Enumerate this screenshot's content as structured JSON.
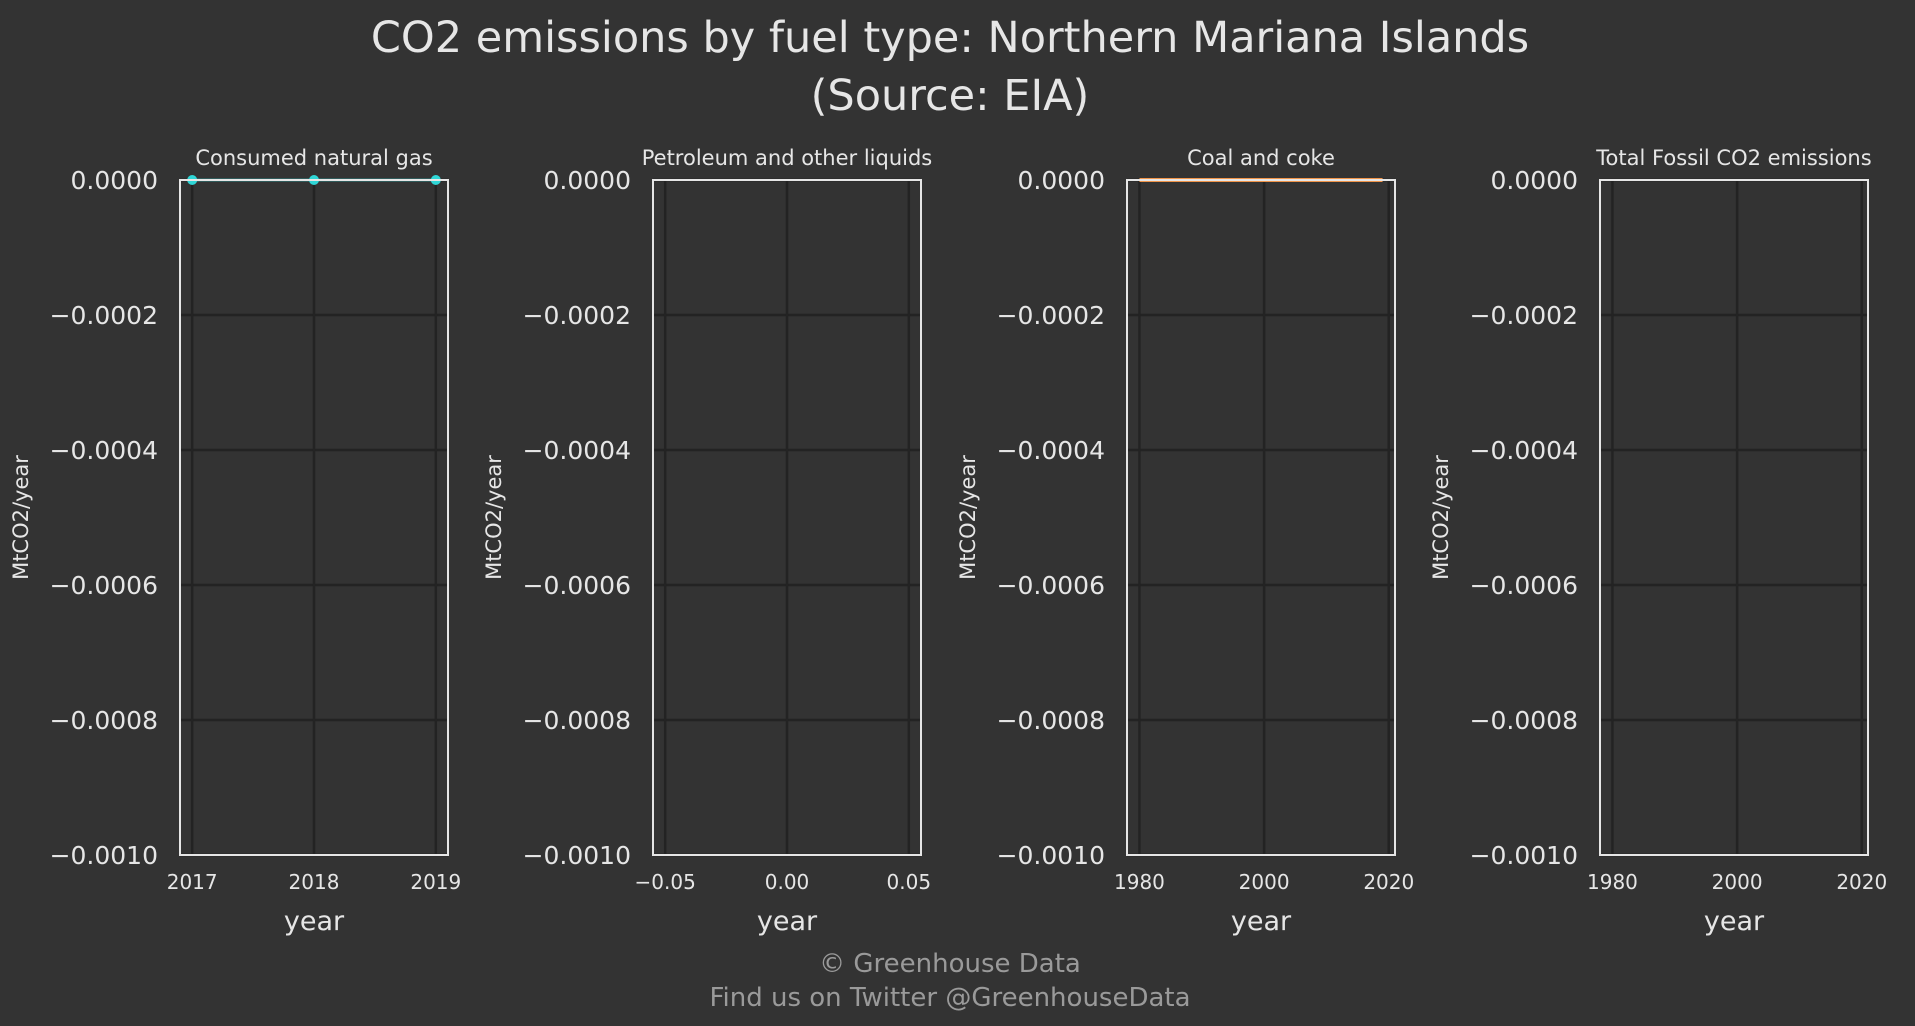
{
  "figure": {
    "title_line1": "CO2 emissions by fuel type: Northern Mariana Islands",
    "title_line2": "(Source: EIA)",
    "footer_line1": "© Greenhouse Data",
    "footer_line2": "Find us on Twitter @GreenhouseData"
  },
  "colors": {
    "background": "#333333",
    "plot_background": "#333333",
    "grid": "#232323",
    "axes": "#e6e6e6",
    "text": "#e6e6e6",
    "footer_text": "#9a9a9a",
    "natural_gas_series": "#2fd6d6",
    "coal_series": "#f0954a"
  },
  "chart_data": [
    {
      "type": "scatter",
      "title": "Consumed natural gas",
      "xlabel": "year",
      "ylabel": "MtCO2/year",
      "xlim": [
        2016.9,
        2019.1
      ],
      "ylim": [
        -0.001,
        0.0
      ],
      "xticks": [
        2017,
        2018,
        2019
      ],
      "xtick_labels": [
        "2017",
        "2018",
        "2019"
      ],
      "yticks": [
        0.0,
        -0.0002,
        -0.0004,
        -0.0006,
        -0.0008,
        -0.001
      ],
      "ytick_labels": [
        "0.0000",
        "−0.0002",
        "−0.0004",
        "−0.0006",
        "−0.0008",
        "−0.0010"
      ],
      "grid": true,
      "series": [
        {
          "x": [
            2017,
            2018,
            2019
          ],
          "y": [
            0,
            0,
            0
          ],
          "color": "#2fd6d6",
          "markers": true
        }
      ]
    },
    {
      "type": "line",
      "title": "Petroleum and other liquids",
      "xlabel": "year",
      "ylabel": "MtCO2/year",
      "xlim": [
        -0.055,
        0.055
      ],
      "ylim": [
        -0.001,
        0.0
      ],
      "xticks": [
        -0.05,
        0.0,
        0.05
      ],
      "xtick_labels": [
        "−0.05",
        "0.00",
        "0.05"
      ],
      "yticks": [
        0.0,
        -0.0002,
        -0.0004,
        -0.0006,
        -0.0008,
        -0.001
      ],
      "ytick_labels": [
        "0.0000",
        "−0.0002",
        "−0.0004",
        "−0.0006",
        "−0.0008",
        "−0.0010"
      ],
      "grid": true,
      "series": []
    },
    {
      "type": "line",
      "title": "Coal and coke",
      "xlabel": "year",
      "ylabel": "MtCO2/year",
      "xlim": [
        1978,
        2021
      ],
      "ylim": [
        -0.001,
        0.0
      ],
      "xticks": [
        1980,
        2000,
        2020
      ],
      "xtick_labels": [
        "1980",
        "2000",
        "2020"
      ],
      "yticks": [
        0.0,
        -0.0002,
        -0.0004,
        -0.0006,
        -0.0008,
        -0.001
      ],
      "ytick_labels": [
        "0.0000",
        "−0.0002",
        "−0.0004",
        "−0.0006",
        "−0.0008",
        "−0.0010"
      ],
      "grid": true,
      "series": [
        {
          "x": [
            1980,
            2019
          ],
          "y": [
            0,
            0
          ],
          "color": "#f0954a",
          "markers": false
        }
      ]
    },
    {
      "type": "line",
      "title": "Total Fossil CO2 emissions",
      "xlabel": "year",
      "ylabel": "MtCO2/year",
      "xlim": [
        1978,
        2021
      ],
      "ylim": [
        -0.001,
        0.0
      ],
      "xticks": [
        1980,
        2000,
        2020
      ],
      "xtick_labels": [
        "1980",
        "2000",
        "2020"
      ],
      "yticks": [
        0.0,
        -0.0002,
        -0.0004,
        -0.0006,
        -0.0008,
        -0.001
      ],
      "ytick_labels": [
        "0.0000",
        "−0.0002",
        "−0.0004",
        "−0.0006",
        "−0.0008",
        "−0.0010"
      ],
      "grid": true,
      "series": []
    }
  ]
}
